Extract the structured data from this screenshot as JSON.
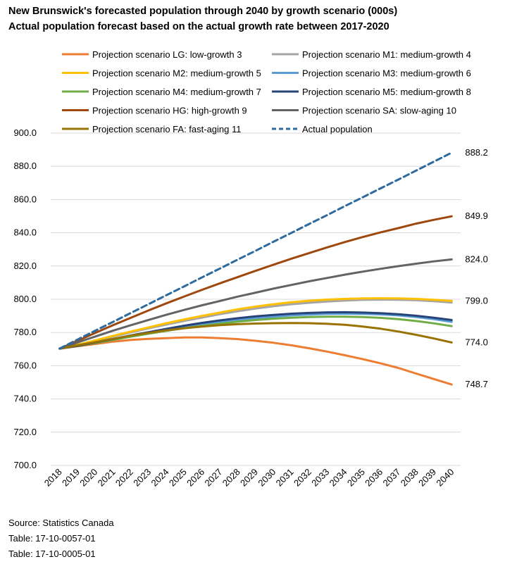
{
  "title": "New Brunswick's forecasted population through 2040 by growth scenario (000s)",
  "subtitle": "Actual population forecast based on the actual growth rate between 2017-2020",
  "source": [
    "Source: Statistics Canada",
    "Table: 17-10-0057-01",
    "Table: 17-10-0005-01"
  ],
  "chart_data": {
    "type": "line",
    "x": [
      "2018",
      "2019",
      "2020",
      "2021",
      "2022",
      "2023",
      "2024",
      "2025",
      "2026",
      "2027",
      "2028",
      "2029",
      "2030",
      "2031",
      "2032",
      "2033",
      "2034",
      "2035",
      "2036",
      "2037",
      "2038",
      "2039",
      "2040"
    ],
    "ylim": [
      700,
      900
    ],
    "yticks": [
      "700.0",
      "720.0",
      "740.0",
      "760.0",
      "780.0",
      "800.0",
      "820.0",
      "840.0",
      "860.0",
      "880.0",
      "900.0"
    ],
    "grid": "horizontal",
    "legend_position": "top",
    "end_labels": [
      "888.2",
      "849.9",
      "824.0",
      "799.0",
      "774.0",
      "748.7"
    ],
    "series": [
      {
        "name": "Projection scenario LG: low-growth 3",
        "color": "#ED7D31",
        "dashed": false,
        "values": [
          770.3,
          771.7,
          773.1,
          774.5,
          775.5,
          776.2,
          776.6,
          777.0,
          777.0,
          776.6,
          776.0,
          775.0,
          773.8,
          772.3,
          770.5,
          768.5,
          766.3,
          764.0,
          761.5,
          758.7,
          755.3,
          752.0,
          748.7
        ]
      },
      {
        "name": "Projection scenario M1: medium-growth 4",
        "color": "#A5A5A5",
        "dashed": false,
        "values": [
          770.3,
          772.5,
          775.0,
          777.6,
          780.1,
          782.5,
          784.8,
          787.0,
          789.0,
          791.0,
          792.8,
          794.4,
          795.8,
          797.0,
          797.9,
          798.6,
          799.2,
          799.6,
          799.8,
          799.7,
          799.4,
          798.8,
          798.0
        ]
      },
      {
        "name": "Projection scenario M2: medium-growth 5",
        "color": "#FFC000",
        "dashed": false,
        "values": [
          770.3,
          772.6,
          775.3,
          778.0,
          780.6,
          783.1,
          785.6,
          787.9,
          790.0,
          792.0,
          794.0,
          795.6,
          797.0,
          798.2,
          799.1,
          799.8,
          800.2,
          800.5,
          800.6,
          800.5,
          800.2,
          799.7,
          799.0
        ]
      },
      {
        "name": "Projection scenario M3: medium-growth 6",
        "color": "#5B9BD5",
        "dashed": false,
        "values": [
          770.3,
          772.0,
          773.9,
          775.9,
          777.9,
          779.8,
          781.6,
          783.3,
          784.8,
          786.2,
          787.5,
          788.6,
          789.5,
          790.3,
          790.8,
          791.2,
          791.3,
          791.2,
          790.9,
          790.3,
          789.3,
          788.0,
          786.4
        ]
      },
      {
        "name": "Projection scenario M4: medium-growth 7",
        "color": "#70AD47",
        "dashed": false,
        "values": [
          770.3,
          771.9,
          773.7,
          775.6,
          777.5,
          779.3,
          781.0,
          782.6,
          784.0,
          785.3,
          786.5,
          787.5,
          788.3,
          788.9,
          789.3,
          789.5,
          789.5,
          789.3,
          788.8,
          788.0,
          786.9,
          785.5,
          783.8
        ]
      },
      {
        "name": "Projection scenario M5: medium-growth 8",
        "color": "#264478",
        "dashed": false,
        "values": [
          770.3,
          772.0,
          774.0,
          776.1,
          778.2,
          780.2,
          782.2,
          784.1,
          785.8,
          787.3,
          788.6,
          789.7,
          790.6,
          791.3,
          791.8,
          792.1,
          792.2,
          792.0,
          791.6,
          791.0,
          790.1,
          788.9,
          787.5
        ]
      },
      {
        "name": "Projection scenario HG: high-growth 9",
        "color": "#9E480E",
        "dashed": false,
        "values": [
          770.3,
          775.0,
          779.8,
          784.4,
          788.9,
          793.3,
          797.6,
          801.7,
          805.7,
          809.6,
          813.4,
          817.1,
          820.8,
          824.4,
          827.8,
          831.2,
          834.4,
          837.4,
          840.2,
          842.8,
          845.5,
          847.8,
          849.9
        ]
      },
      {
        "name": "Projection scenario SA: slow-aging 10",
        "color": "#636363",
        "dashed": false,
        "values": [
          770.3,
          774.0,
          777.6,
          781.1,
          784.4,
          787.6,
          790.7,
          793.6,
          796.4,
          799.0,
          801.6,
          804.0,
          806.4,
          808.6,
          810.8,
          812.8,
          814.8,
          816.6,
          818.3,
          819.9,
          821.4,
          822.8,
          824.0
        ]
      },
      {
        "name": "Projection scenario FA: fast-aging 11",
        "color": "#997300",
        "dashed": false,
        "values": [
          770.3,
          772.3,
          774.2,
          776.2,
          778.1,
          779.8,
          781.3,
          782.6,
          783.6,
          784.4,
          785.0,
          785.4,
          785.6,
          785.7,
          785.6,
          785.2,
          784.6,
          783.6,
          782.3,
          780.6,
          778.6,
          776.4,
          774.0
        ]
      },
      {
        "name": "Actual population",
        "color": "#2E6A9E",
        "dashed": true,
        "values": [
          770.3,
          775.7,
          781.1,
          786.4,
          791.8,
          797.1,
          802.5,
          807.8,
          813.2,
          818.5,
          823.9,
          829.2,
          834.6,
          839.9,
          845.3,
          850.6,
          856.0,
          861.3,
          866.7,
          872.0,
          877.4,
          882.8,
          888.2
        ]
      }
    ]
  }
}
